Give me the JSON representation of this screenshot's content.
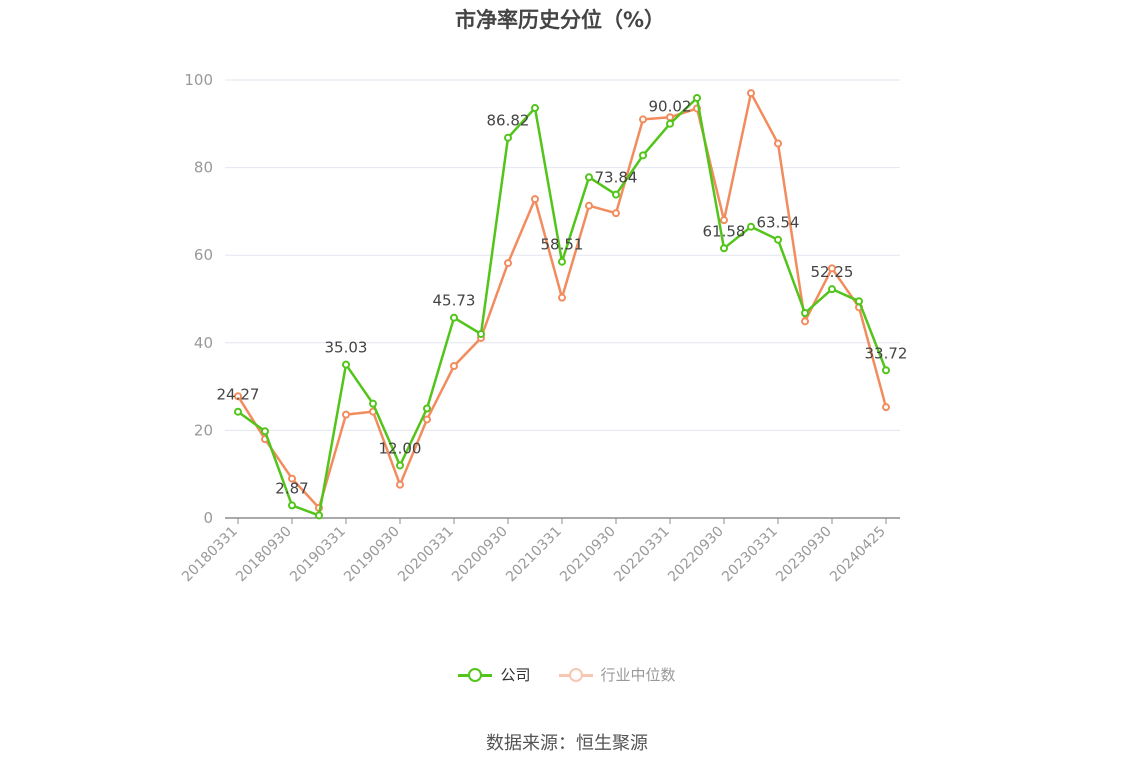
{
  "chart_data": {
    "type": "line",
    "title": "市净率历史分位（%）",
    "source": "数据来源：恒生聚源",
    "ylim": [
      0,
      100
    ],
    "y_ticks": [
      0,
      20,
      40,
      60,
      80,
      100
    ],
    "x_tick_labels": [
      "20180331",
      "20180930",
      "20190331",
      "20190930",
      "20200331",
      "20200930",
      "20210331",
      "20210930",
      "20220331",
      "20220930",
      "20230331",
      "20230930",
      "20240425"
    ],
    "x_tick_indices": [
      0,
      2,
      4,
      6,
      8,
      10,
      12,
      14,
      16,
      18,
      20,
      22,
      24
    ],
    "grid": true,
    "legend_position": "bottom",
    "series": [
      {
        "name": "公司",
        "color": "#52c41a",
        "values": [
          24.27,
          19.8,
          2.87,
          0.6,
          35.03,
          26.1,
          12.0,
          25.0,
          45.73,
          42.0,
          86.82,
          93.6,
          58.51,
          77.8,
          73.84,
          82.8,
          90.02,
          95.9,
          61.58,
          66.5,
          63.54,
          46.8,
          52.25,
          49.5,
          33.72
        ],
        "labeled": {
          "0": "24.27",
          "2": "2.87",
          "4": "35.03",
          "6": "12.00",
          "8": "45.73",
          "10": "86.82",
          "12": "58.51",
          "14": "73.84",
          "16": "90.02",
          "18": "61.58",
          "20": "63.54",
          "22": "52.25",
          "24": "33.72"
        }
      },
      {
        "name": "行业中位数",
        "color": "#f28c5e",
        "values": [
          27.8,
          18.0,
          9.0,
          2.3,
          23.6,
          24.3,
          7.6,
          22.5,
          34.7,
          41.1,
          58.2,
          72.8,
          50.3,
          71.3,
          69.6,
          91.0,
          91.5,
          93.5,
          68.0,
          97.0,
          85.5,
          44.9,
          57.0,
          48.1,
          25.3
        ]
      }
    ]
  }
}
